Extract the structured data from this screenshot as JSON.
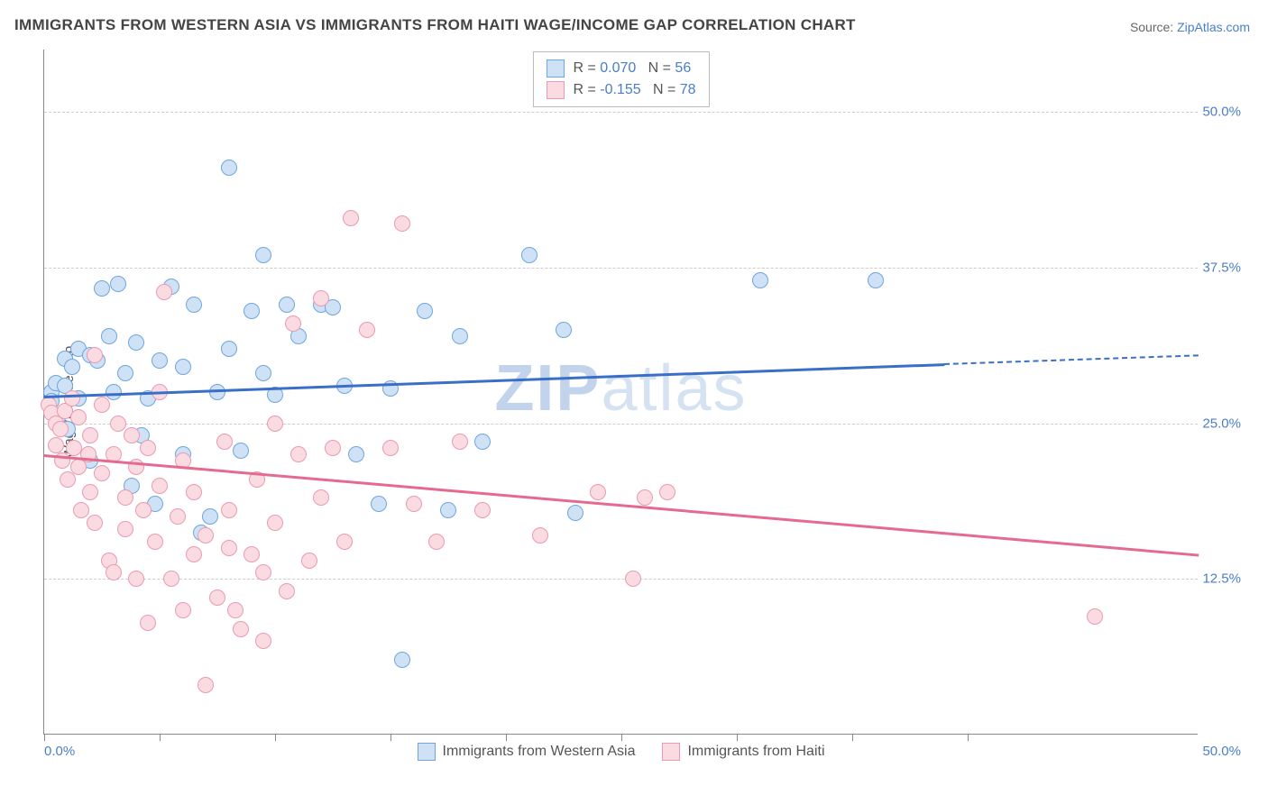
{
  "title": "IMMIGRANTS FROM WESTERN ASIA VS IMMIGRANTS FROM HAITI WAGE/INCOME GAP CORRELATION CHART",
  "source_label": "Source: ",
  "source_value": "ZipAtlas.com",
  "ylabel": "Wage/Income Gap",
  "watermark_bold": "ZIP",
  "watermark_rest": "atlas",
  "chart": {
    "type": "scatter",
    "x_min": 0,
    "x_max": 50,
    "y_min": 0,
    "y_max": 55,
    "x_end_left": "0.0%",
    "x_end_right": "50.0%",
    "x_ticks": [
      0,
      5,
      10,
      15,
      20,
      25,
      30,
      35,
      40
    ],
    "y_gridlines": [
      12.5,
      25.0,
      37.5,
      50.0
    ],
    "y_tick_labels": [
      "12.5%",
      "25.0%",
      "37.5%",
      "50.0%"
    ],
    "background_color": "#ffffff",
    "grid_color": "#cccccc",
    "axis_color": "#888888",
    "tick_label_color": "#4a7ec9",
    "marker_radius": 9,
    "marker_stroke_width": 1.5,
    "series": [
      {
        "name": "Immigrants from Western Asia",
        "fill": "#cfe1f5",
        "stroke": "#6ea6df",
        "line_color": "#3a6fc7",
        "R": "0.070",
        "N": "56",
        "reg_start": {
          "x": 0,
          "y": 27.2
        },
        "reg_end_solid": {
          "x": 39,
          "y": 29.8
        },
        "reg_end_dash": {
          "x": 50,
          "y": 30.5
        },
        "points": [
          [
            0.3,
            27.5
          ],
          [
            0.3,
            26.8
          ],
          [
            0.5,
            28.2
          ],
          [
            0.6,
            25.5
          ],
          [
            0.9,
            30.2
          ],
          [
            0.9,
            28.0
          ],
          [
            1.2,
            29.5
          ],
          [
            1.0,
            24.5
          ],
          [
            1.5,
            27.0
          ],
          [
            1.5,
            31.0
          ],
          [
            2.0,
            30.5
          ],
          [
            2.0,
            22.0
          ],
          [
            2.3,
            30.0
          ],
          [
            2.5,
            35.8
          ],
          [
            3.0,
            27.5
          ],
          [
            2.8,
            32.0
          ],
          [
            3.2,
            36.2
          ],
          [
            3.5,
            29.0
          ],
          [
            3.8,
            20.0
          ],
          [
            4.0,
            31.5
          ],
          [
            4.2,
            24.0
          ],
          [
            4.5,
            27.0
          ],
          [
            4.8,
            18.5
          ],
          [
            5.0,
            30.0
          ],
          [
            5.5,
            36.0
          ],
          [
            6.0,
            29.5
          ],
          [
            6.0,
            22.5
          ],
          [
            6.5,
            34.5
          ],
          [
            6.8,
            16.2
          ],
          [
            7.2,
            17.5
          ],
          [
            7.5,
            27.5
          ],
          [
            8.0,
            45.5
          ],
          [
            8.0,
            31.0
          ],
          [
            8.5,
            22.8
          ],
          [
            9.0,
            34.0
          ],
          [
            9.5,
            38.5
          ],
          [
            9.5,
            29.0
          ],
          [
            10.0,
            27.3
          ],
          [
            10.5,
            34.5
          ],
          [
            11.0,
            32.0
          ],
          [
            12.0,
            34.5
          ],
          [
            12.5,
            34.3
          ],
          [
            13.0,
            28.0
          ],
          [
            13.5,
            22.5
          ],
          [
            14.5,
            18.5
          ],
          [
            15.0,
            27.8
          ],
          [
            15.5,
            6.0
          ],
          [
            16.5,
            34.0
          ],
          [
            17.5,
            18.0
          ],
          [
            18.0,
            32.0
          ],
          [
            19.0,
            23.5
          ],
          [
            21.0,
            38.5
          ],
          [
            22.5,
            32.5
          ],
          [
            23.0,
            17.8
          ],
          [
            31.0,
            36.5
          ],
          [
            36.0,
            36.5
          ]
        ]
      },
      {
        "name": "Immigrants from Haiti",
        "fill": "#fadbe2",
        "stroke": "#ea9ab2",
        "line_color": "#e56a8f",
        "R": "-0.155",
        "N": "78",
        "reg_start": {
          "x": 0,
          "y": 22.5
        },
        "reg_end_solid": {
          "x": 50,
          "y": 14.5
        },
        "reg_end_dash": null,
        "points": [
          [
            0.2,
            26.5
          ],
          [
            0.3,
            25.8
          ],
          [
            0.5,
            25.0
          ],
          [
            0.5,
            23.2
          ],
          [
            0.7,
            24.5
          ],
          [
            0.8,
            22.0
          ],
          [
            0.9,
            26.0
          ],
          [
            1.0,
            20.5
          ],
          [
            1.2,
            27.0
          ],
          [
            1.3,
            23.0
          ],
          [
            1.5,
            21.5
          ],
          [
            1.5,
            25.5
          ],
          [
            1.6,
            18.0
          ],
          [
            1.9,
            22.5
          ],
          [
            2.0,
            19.5
          ],
          [
            2.0,
            24.0
          ],
          [
            2.2,
            30.5
          ],
          [
            2.2,
            17.0
          ],
          [
            2.5,
            21.0
          ],
          [
            2.5,
            26.5
          ],
          [
            2.8,
            14.0
          ],
          [
            3.0,
            22.5
          ],
          [
            3.0,
            13.0
          ],
          [
            3.2,
            25.0
          ],
          [
            3.5,
            19.0
          ],
          [
            3.5,
            16.5
          ],
          [
            3.8,
            24.0
          ],
          [
            4.0,
            21.5
          ],
          [
            4.0,
            12.5
          ],
          [
            4.3,
            18.0
          ],
          [
            4.5,
            23.0
          ],
          [
            4.5,
            9.0
          ],
          [
            4.8,
            15.5
          ],
          [
            5.0,
            20.0
          ],
          [
            5.0,
            27.5
          ],
          [
            5.2,
            35.5
          ],
          [
            5.5,
            12.5
          ],
          [
            5.8,
            17.5
          ],
          [
            6.0,
            10.0
          ],
          [
            6.0,
            22.0
          ],
          [
            6.5,
            19.5
          ],
          [
            6.5,
            14.5
          ],
          [
            7.0,
            16.0
          ],
          [
            7.0,
            4.0
          ],
          [
            7.5,
            11.0
          ],
          [
            7.8,
            23.5
          ],
          [
            8.0,
            15.0
          ],
          [
            8.0,
            18.0
          ],
          [
            8.3,
            10.0
          ],
          [
            8.5,
            8.5
          ],
          [
            9.0,
            14.5
          ],
          [
            9.2,
            20.5
          ],
          [
            9.5,
            13.0
          ],
          [
            9.5,
            7.5
          ],
          [
            10.0,
            25.0
          ],
          [
            10.0,
            17.0
          ],
          [
            10.5,
            11.5
          ],
          [
            10.8,
            33.0
          ],
          [
            11.0,
            22.5
          ],
          [
            11.5,
            14.0
          ],
          [
            12.0,
            35.0
          ],
          [
            12.0,
            19.0
          ],
          [
            12.5,
            23.0
          ],
          [
            13.0,
            15.5
          ],
          [
            13.3,
            41.5
          ],
          [
            14.0,
            32.5
          ],
          [
            15.0,
            23.0
          ],
          [
            15.5,
            41.0
          ],
          [
            16.0,
            18.5
          ],
          [
            17.0,
            15.5
          ],
          [
            18.0,
            23.5
          ],
          [
            19.0,
            18.0
          ],
          [
            21.5,
            16.0
          ],
          [
            24.0,
            19.5
          ],
          [
            25.5,
            12.5
          ],
          [
            26.0,
            19.0
          ],
          [
            27.0,
            19.5
          ],
          [
            45.5,
            9.5
          ]
        ]
      }
    ],
    "bottom_legend": [
      {
        "swatch_fill": "#cfe1f5",
        "swatch_stroke": "#6ea6df",
        "label": "Immigrants from Western Asia"
      },
      {
        "swatch_fill": "#fadbe2",
        "swatch_stroke": "#ea9ab2",
        "label": "Immigrants from Haiti"
      }
    ]
  }
}
